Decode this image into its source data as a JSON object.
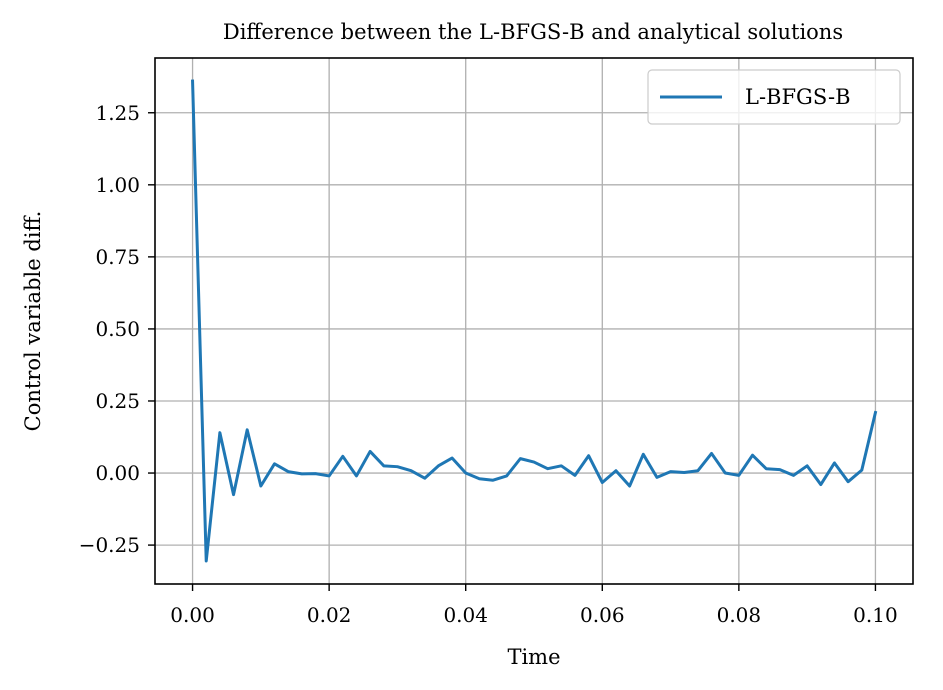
{
  "chart_data": {
    "type": "line",
    "title": "Difference between the L-BFGS-B and analytical solutions",
    "xlabel": "Time",
    "ylabel": "Control variable diff.",
    "xlim": [
      -0.0055,
      0.1055
    ],
    "ylim": [
      -0.385,
      1.44
    ],
    "xticks": [
      0.0,
      0.02,
      0.04,
      0.06,
      0.08,
      0.1
    ],
    "xtick_labels": [
      "0.00",
      "0.02",
      "0.04",
      "0.06",
      "0.08",
      "0.10"
    ],
    "yticks": [
      -0.25,
      0.0,
      0.25,
      0.5,
      0.75,
      1.0,
      1.25
    ],
    "ytick_labels": [
      "−0.25",
      "0.00",
      "0.25",
      "0.50",
      "0.75",
      "1.00",
      "1.25"
    ],
    "grid": true,
    "legend_position": "top-right",
    "series": [
      {
        "name": "L-BFGS-B",
        "color": "#1f77b4",
        "x": [
          0.0,
          0.002,
          0.004,
          0.006,
          0.008,
          0.01,
          0.012,
          0.014,
          0.016,
          0.018,
          0.02,
          0.022,
          0.024,
          0.026,
          0.028,
          0.03,
          0.032,
          0.034,
          0.036,
          0.038,
          0.04,
          0.042,
          0.044,
          0.046,
          0.048,
          0.05,
          0.052,
          0.054,
          0.056,
          0.058,
          0.06,
          0.062,
          0.064,
          0.066,
          0.068,
          0.07,
          0.072,
          0.074,
          0.076,
          0.078,
          0.08,
          0.082,
          0.084,
          0.086,
          0.088,
          0.09,
          0.092,
          0.094,
          0.096,
          0.098,
          0.1
        ],
        "y": [
          1.36,
          -0.305,
          0.14,
          -0.075,
          0.15,
          -0.045,
          0.032,
          0.005,
          -0.003,
          -0.002,
          -0.01,
          0.058,
          -0.01,
          0.075,
          0.025,
          0.022,
          0.008,
          -0.018,
          0.025,
          0.052,
          0.0,
          -0.02,
          -0.025,
          -0.01,
          0.05,
          0.038,
          0.015,
          0.025,
          -0.008,
          0.06,
          -0.033,
          0.008,
          -0.045,
          0.065,
          -0.015,
          0.005,
          0.002,
          0.008,
          0.068,
          0.0,
          -0.008,
          0.062,
          0.015,
          0.012,
          -0.008,
          0.025,
          -0.04,
          0.035,
          -0.03,
          0.01,
          0.21
        ]
      }
    ]
  }
}
